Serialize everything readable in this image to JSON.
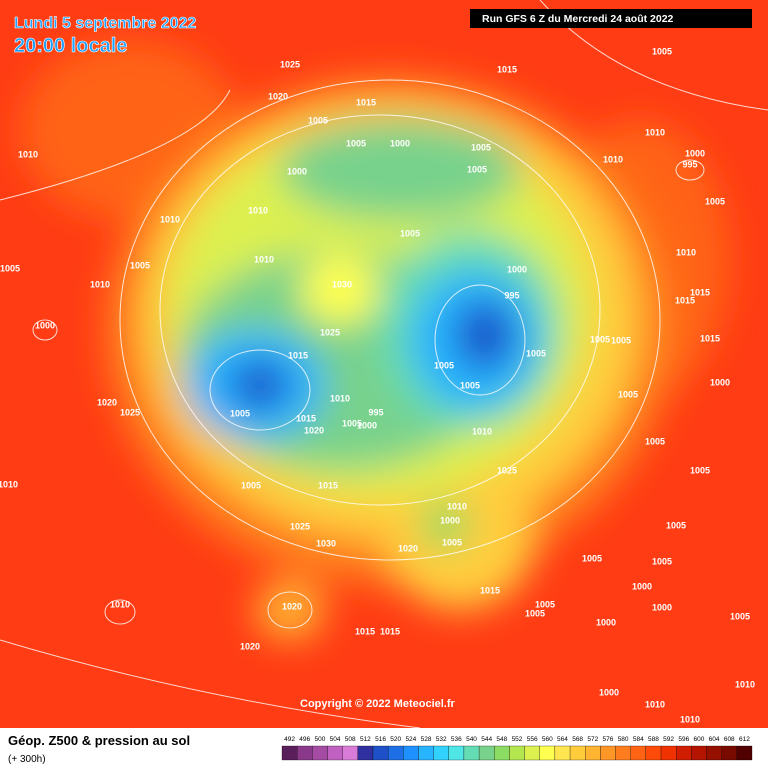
{
  "header": {
    "date": "Lundi 5 septembre 2022",
    "time": "20:00 locale",
    "run": "Run GFS 6 Z du Mercredi 24 août 2022"
  },
  "map": {
    "pressure_labels": [
      1025,
      1015,
      1005,
      1020,
      1015,
      1005,
      1010,
      1005,
      1000,
      1005,
      1010,
      1010,
      1000,
      995,
      1000,
      1005,
      1005,
      1010,
      1010,
      1005,
      1010,
      1005,
      1005,
      1010,
      1000,
      1010,
      1030,
      995,
      1015,
      1015,
      1025,
      1015,
      1005,
      1005,
      1005,
      1015,
      1005,
      1005,
      1000,
      1020,
      1025,
      1005,
      1005,
      1010,
      995,
      1015,
      1020,
      1005,
      1000,
      1010,
      1005,
      1025,
      1010,
      1005,
      1015,
      1005,
      1010,
      1000,
      1005,
      1025,
      1030,
      1020,
      1005,
      1005,
      1005,
      1000,
      1015,
      1005,
      1005,
      1000,
      1000,
      1005,
      1010,
      1020,
      1015,
      1015,
      1020,
      1010,
      1000,
      1010,
      1010,
      1000
    ],
    "copyright": "Copyright © 2022 Meteociel.fr"
  },
  "legend": {
    "title": "Géop. Z500 & pression au sol",
    "lead": "(+ 300h)",
    "labels": [
      492,
      496,
      500,
      504,
      508,
      512,
      516,
      520,
      524,
      528,
      532,
      536,
      540,
      544,
      548,
      552,
      556,
      560,
      564,
      568,
      572,
      576,
      580,
      584,
      588,
      592,
      596,
      600,
      604,
      608,
      612
    ],
    "colors": [
      "#5a1f5a",
      "#8b3a8b",
      "#a44ca4",
      "#c060c0",
      "#d87cd8",
      "#3030a0",
      "#1e50c8",
      "#1e6ee6",
      "#1e90ff",
      "#28b4ff",
      "#32d2ff",
      "#50e6e6",
      "#64dcb4",
      "#78d28c",
      "#8cdc64",
      "#b4e650",
      "#dcf050",
      "#ffff50",
      "#ffe650",
      "#ffcd3c",
      "#ffb432",
      "#ff9628",
      "#ff7d1e",
      "#ff6414",
      "#ff4b0a",
      "#f03200",
      "#d21e00",
      "#b41400",
      "#961000",
      "#780a00",
      "#500000"
    ]
  }
}
